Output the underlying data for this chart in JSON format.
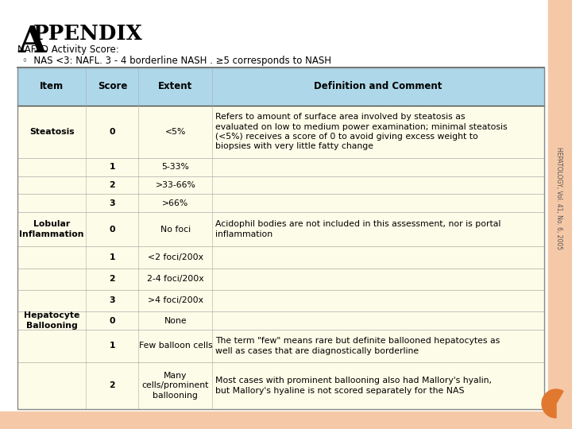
{
  "title_A": "A",
  "title_rest": "PPENDIX",
  "subtitle": "NAFLD Activity Score:",
  "bullet": "NAS <3: NAFL. 3 - 4 borderline NASH . ≥5 corresponds to NASH",
  "header": [
    "Item",
    "Score",
    "Extent",
    "Definition and Comment"
  ],
  "rows": [
    [
      "Steatosis",
      "0",
      "<5%",
      "Refers to amount of surface area involved by steatosis as\nevaluated on low to medium power examination; minimal steatosis\n(<5%) receives a score of 0 to avoid giving excess weight to\nbiopsies with very little fatty change"
    ],
    [
      "",
      "1",
      "5-33%",
      ""
    ],
    [
      "",
      "2",
      ">33-66%",
      ""
    ],
    [
      "",
      "3",
      ">66%",
      ""
    ],
    [
      "Lobular\nInflammation",
      "0",
      "No foci",
      "Acidophil bodies are not included in this assessment, nor is portal\ninflammation"
    ],
    [
      "",
      "1",
      "<2 foci/200x",
      ""
    ],
    [
      "",
      "2",
      "2-4 foci/200x",
      ""
    ],
    [
      "",
      "3",
      ">4 foci/200x",
      ""
    ],
    [
      "Hepatocyte\nBallooning",
      "0",
      "None",
      ""
    ],
    [
      "",
      "1",
      "Few balloon cells",
      "The term \"few\" means rare but definite ballooned hepatocytes as\nwell as cases that are diagnostically borderline"
    ],
    [
      "",
      "2",
      "Many\ncells/prominent\nballooning",
      "Most cases with prominent ballooning also had Mallory's hyalin,\nbut Mallory's hyaline is not scored separately for the NAS"
    ]
  ],
  "header_bg": "#aed8ea",
  "row_bg": "#fdfce8",
  "main_bg": "#ffffff",
  "outer_bg": "#e8a882",
  "border_bg": "#f5c8a8",
  "sidebar_text": "HEPATOLOGY, Vol. 41, No. 6, 2005",
  "orange_circle_color": "#e07830",
  "title_fontsize": 22,
  "subtitle_fontsize": 8.5,
  "bullet_fontsize": 8.5,
  "header_fontsize": 8.5,
  "cell_fontsize": 7.8,
  "sidebar_fontsize": 5.5
}
